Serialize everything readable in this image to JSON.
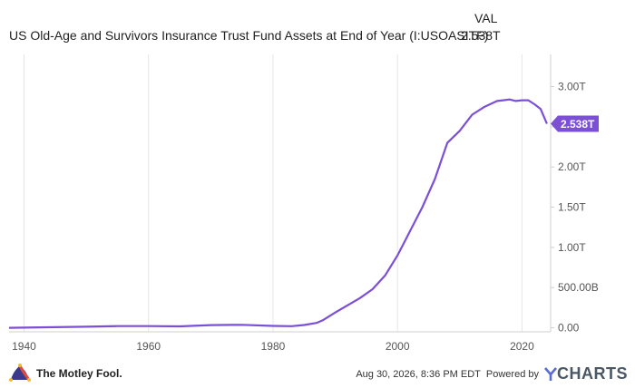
{
  "header": {
    "title": "US Old-Age and Survivors Insurance Trust Fund Assets at End of Year (I:USOASITF)",
    "val_label": "VAL",
    "val_value": "2.538T"
  },
  "footer": {
    "brand": "The Motley Fool.",
    "timestamp": "Aug 30, 2026, 8:36 PM EDT",
    "powered_by": "Powered by",
    "ycharts": "CHARTS",
    "ycharts_y": "Y"
  },
  "colors": {
    "line": "#7b4fd6",
    "grid": "#e6e6e6",
    "badge": "#7b4fd6"
  },
  "chart_data": {
    "type": "line",
    "title": "",
    "xlabel": "",
    "ylabel": "",
    "xlim": [
      1937.6,
      2024.6
    ],
    "ylim": [
      -0.05,
      3.4
    ],
    "y_ticks": [
      0,
      0.5,
      1.0,
      1.5,
      2.0,
      2.5,
      3.0
    ],
    "y_tick_labels": [
      "0.00",
      "500.00B",
      "1.00T",
      "1.50T",
      "2.00T",
      "2.50T",
      "3.00T"
    ],
    "x_ticks": [
      1940,
      1960,
      1980,
      2000,
      2020
    ],
    "x_tick_labels": [
      "1940",
      "1960",
      "1980",
      "2000",
      "2020"
    ],
    "grid": true,
    "last_value_label": "2.538T",
    "series": [
      {
        "values_unit": "trillions USD",
        "x": [
          1937,
          1940,
          1945,
          1950,
          1955,
          1960,
          1965,
          1970,
          1975,
          1980,
          1983,
          1985,
          1987,
          1988,
          1990,
          1992,
          1994,
          1996,
          1998,
          2000,
          2002,
          2004,
          2006,
          2008,
          2010,
          2012,
          2014,
          2016,
          2017,
          2018,
          2019,
          2020,
          2021,
          2022,
          2023,
          2024
        ],
        "y": [
          0.0,
          0.002,
          0.007,
          0.013,
          0.021,
          0.021,
          0.018,
          0.033,
          0.037,
          0.023,
          0.02,
          0.035,
          0.06,
          0.093,
          0.19,
          0.28,
          0.37,
          0.48,
          0.65,
          0.9,
          1.2,
          1.5,
          1.85,
          2.3,
          2.45,
          2.65,
          2.75,
          2.82,
          2.83,
          2.84,
          2.82,
          2.83,
          2.83,
          2.78,
          2.72,
          2.538
        ]
      }
    ]
  }
}
